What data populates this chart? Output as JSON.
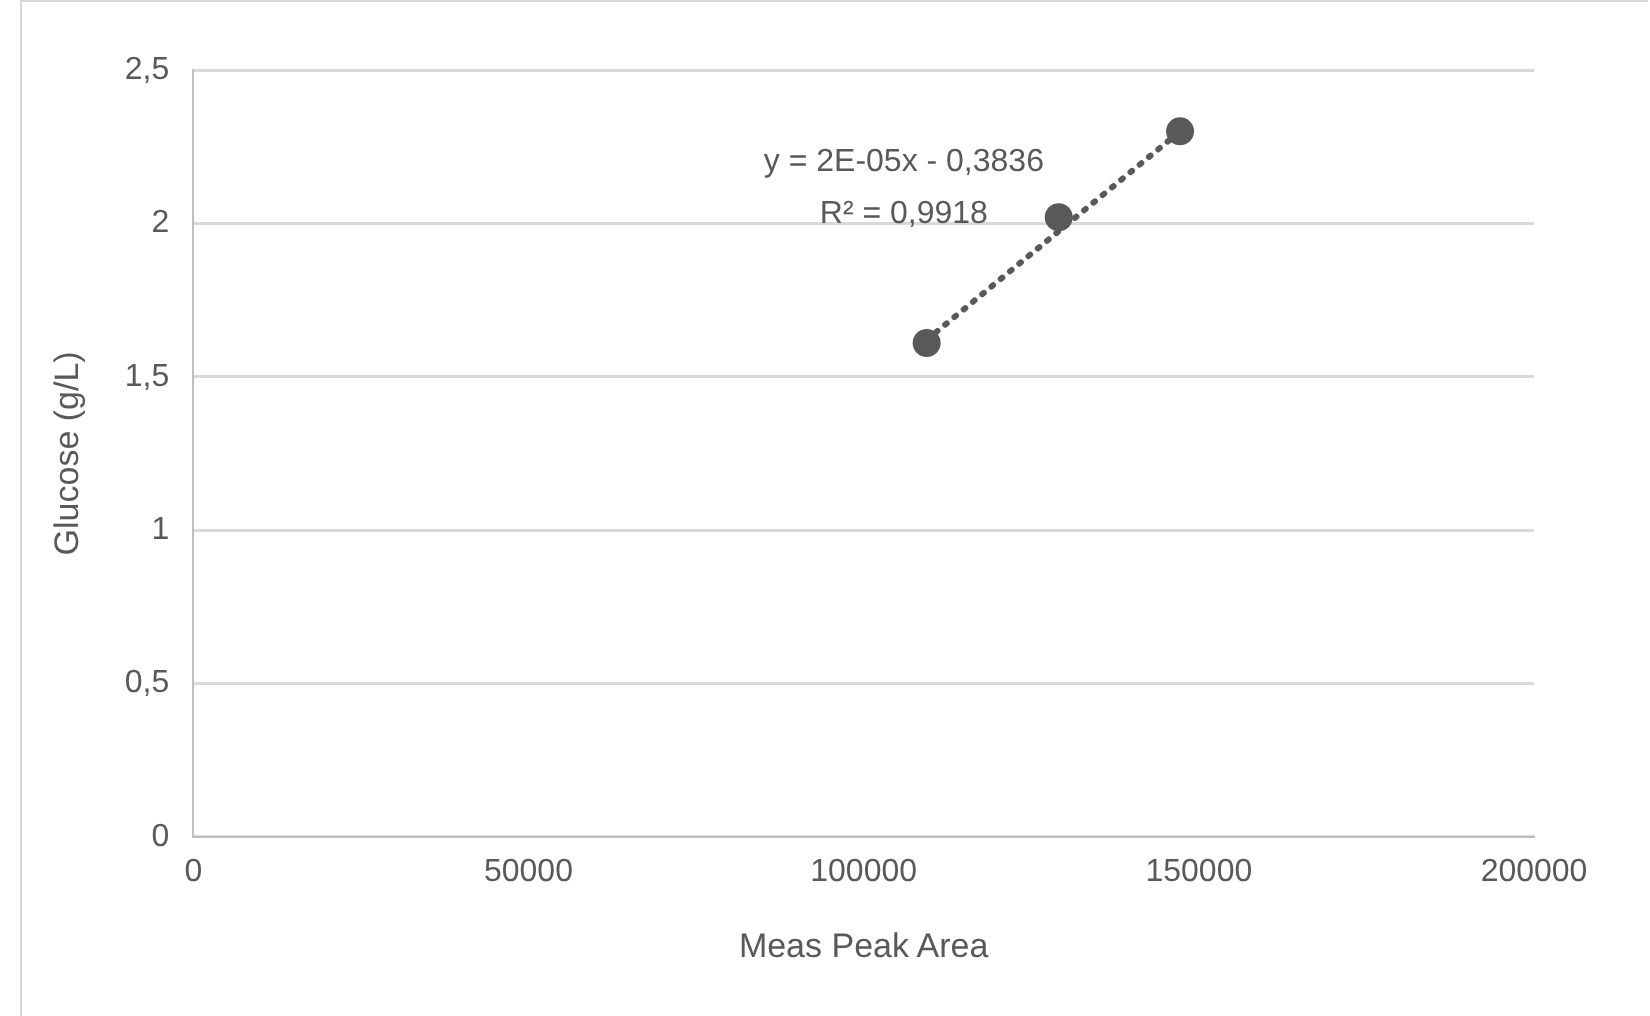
{
  "chart_data": {
    "type": "scatter",
    "xlabel": "Meas Peak Area",
    "ylabel": "Glucose (g/L)",
    "series": [
      {
        "type": "scatter",
        "color": "#595959",
        "x": [
          109400,
          129100,
          147200
        ],
        "values": [
          1.61,
          2.02,
          2.3
        ]
      },
      {
        "type": "line",
        "color": "#595959",
        "line_style": "dotted",
        "marker": "none",
        "x": [
          109400,
          147200
        ],
        "values": [
          1.62,
          2.3
        ]
      }
    ],
    "marker": "circle",
    "xlim": [
      0,
      200000
    ],
    "xticks": [
      0,
      50000,
      100000,
      150000,
      200000
    ],
    "ylim": [
      0,
      2.5
    ],
    "yticks": [
      0,
      {
        "value": 0.5,
        "label": "0,5"
      },
      1,
      {
        "value": 1.5,
        "label": "1,5"
      },
      2,
      {
        "value": 2.5,
        "label": "2,5"
      }
    ],
    "grid": "y",
    "legend": false,
    "annotations": [
      "y = 2E-05x - 0,3836",
      "R² = 0,9918"
    ]
  }
}
